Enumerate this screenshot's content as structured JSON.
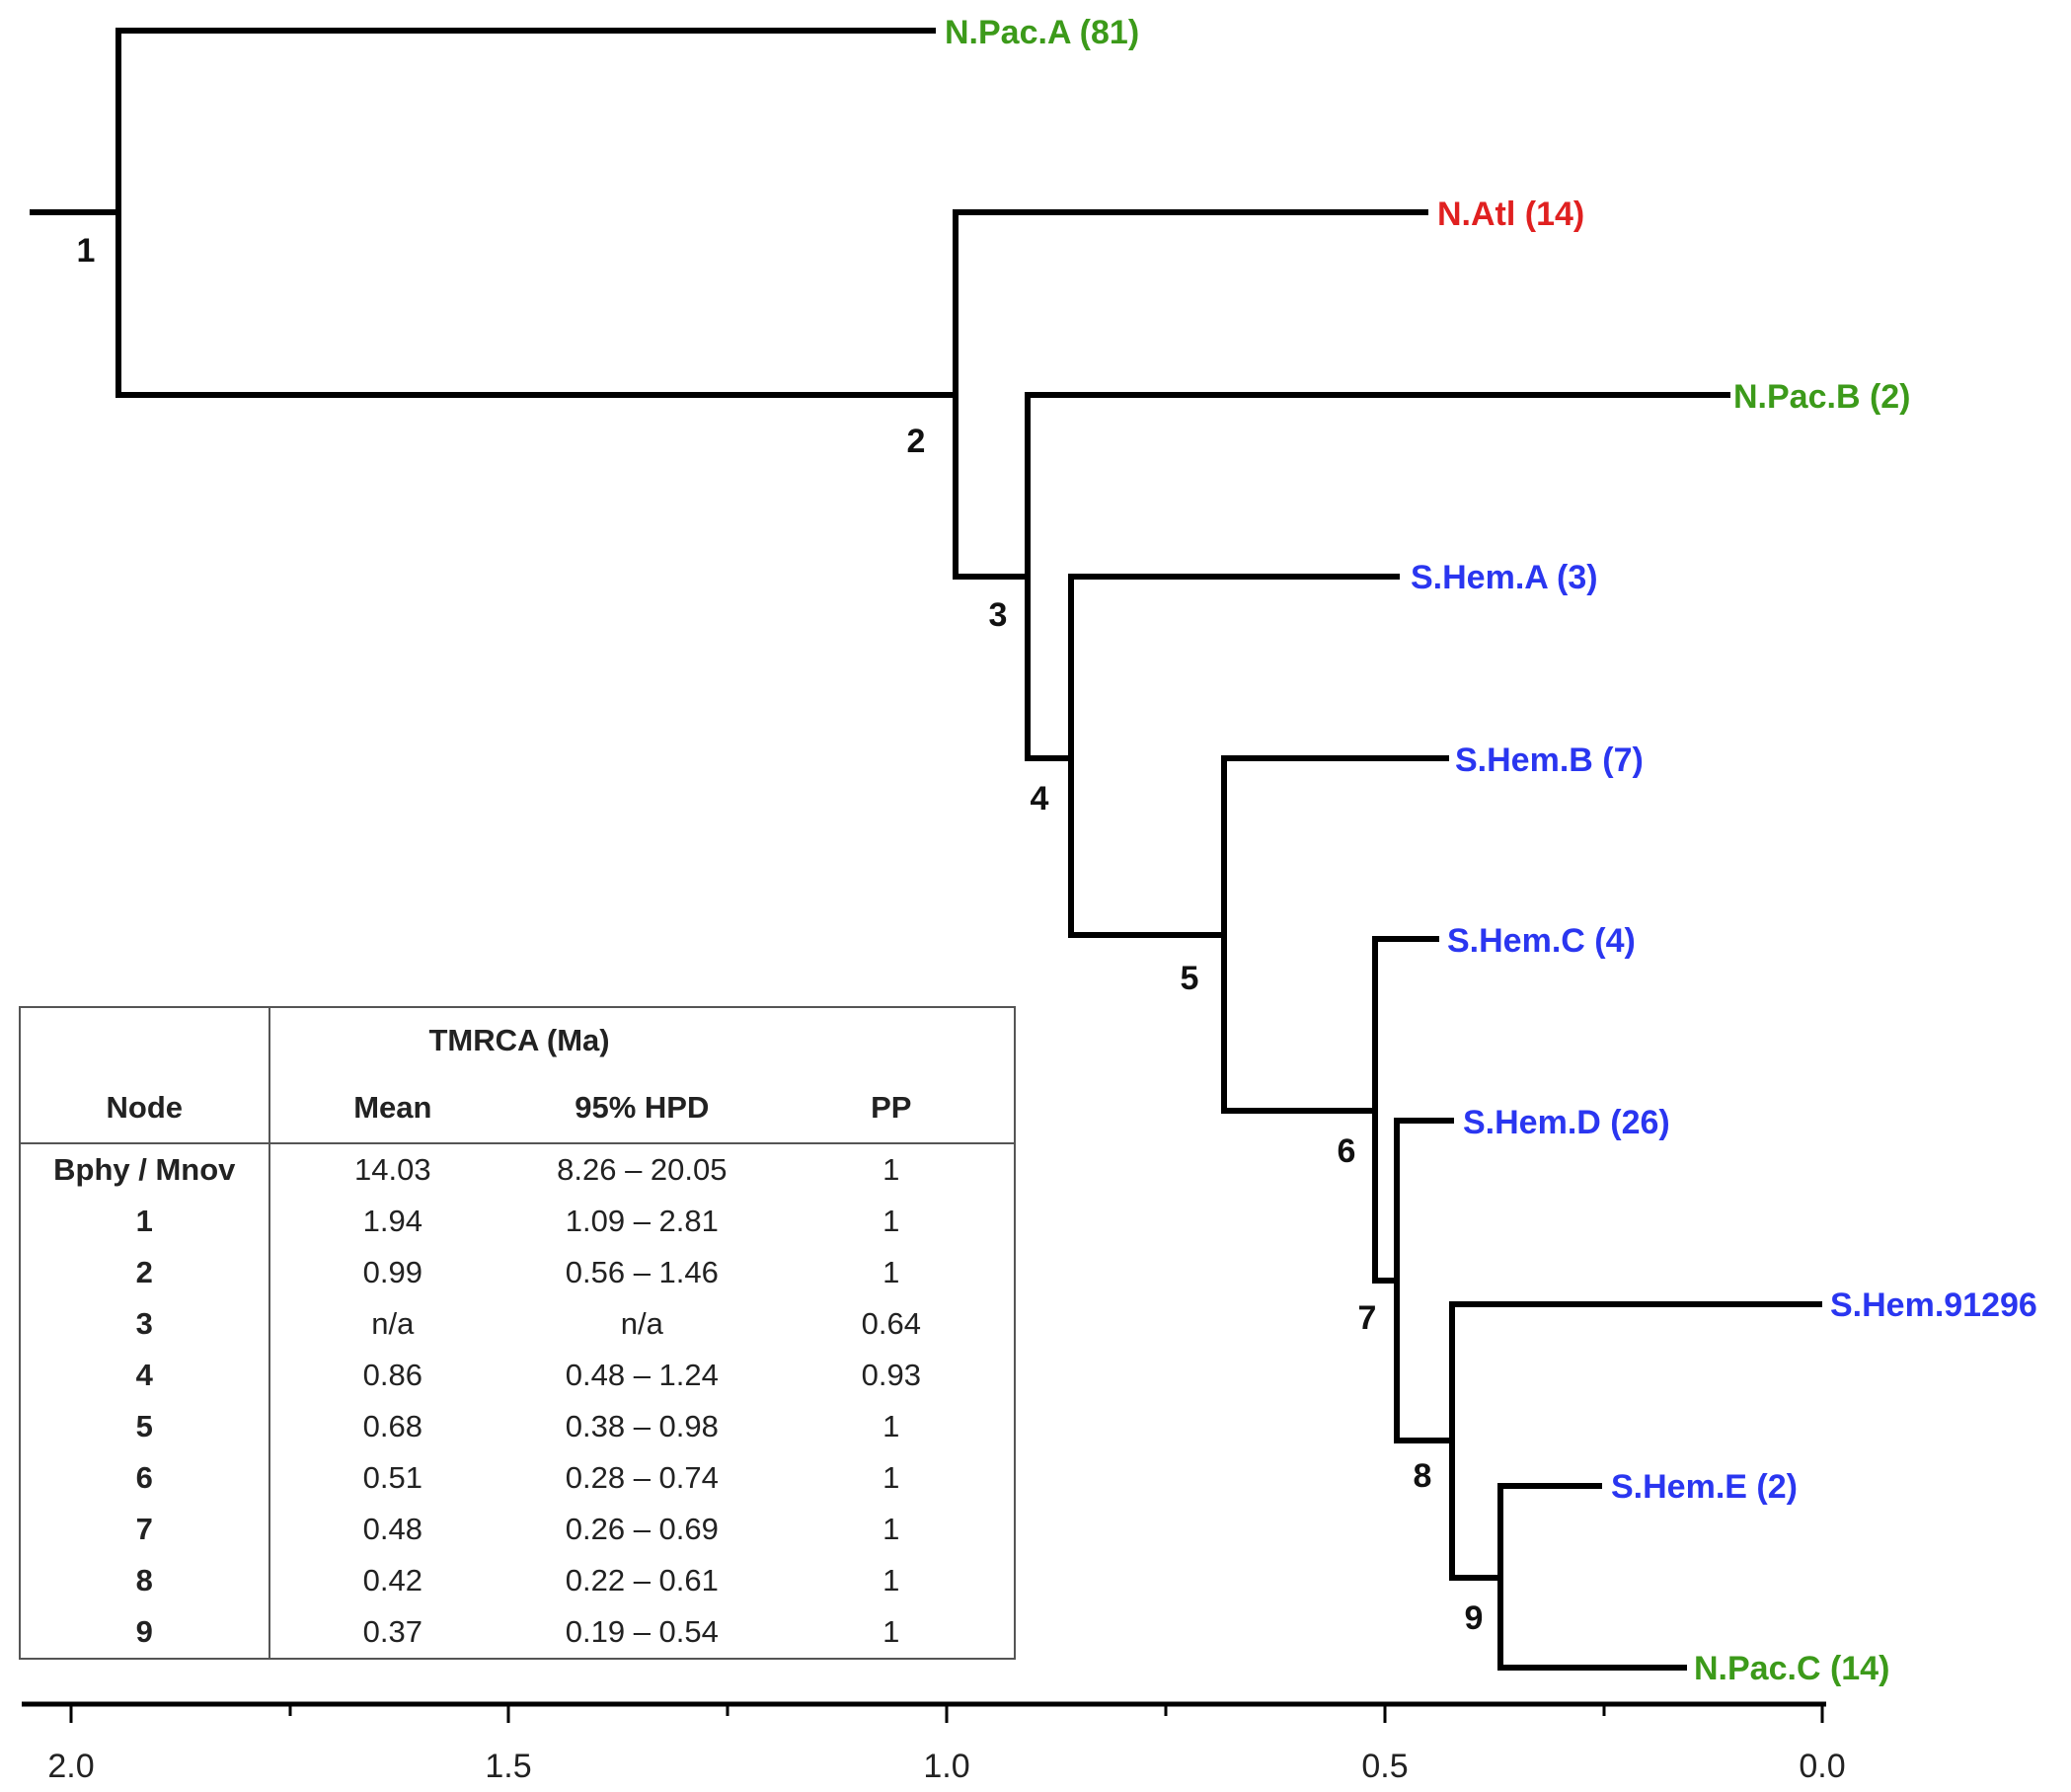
{
  "tree": {
    "tips": [
      {
        "label": "N.Pac.A (81)",
        "color": "#3c9a1a"
      },
      {
        "label": "N.Atl (14)",
        "color": "#e02020"
      },
      {
        "label": "N.Pac.B (2)",
        "color": "#3c9a1a"
      },
      {
        "label": "S.Hem.A (3)",
        "color": "#2a36f0"
      },
      {
        "label": "S.Hem.B (7)",
        "color": "#2a36f0"
      },
      {
        "label": "S.Hem.C (4)",
        "color": "#2a36f0"
      },
      {
        "label": "S.Hem.D (26)",
        "color": "#2a36f0"
      },
      {
        "label": "S.Hem.91296",
        "color": "#2a36f0"
      },
      {
        "label": "S.Hem.E (2)",
        "color": "#2a36f0"
      },
      {
        "label": "N.Pac.C (14)",
        "color": "#3c9a1a"
      }
    ],
    "node_labels": [
      "1",
      "2",
      "3",
      "4",
      "5",
      "6",
      "7",
      "8",
      "9"
    ],
    "axis_ticks": [
      "2.0",
      "1.5",
      "1.0",
      "0.5",
      "0.0"
    ]
  },
  "table": {
    "header_top": "TMRCA (Ma)",
    "columns": [
      "Node",
      "Mean",
      "95% HPD",
      "PP"
    ],
    "rows": [
      {
        "node": "Bphy / Mnov",
        "mean": "14.03",
        "hpd": "8.26 – 20.05",
        "pp": "1"
      },
      {
        "node": "1",
        "mean": "1.94",
        "hpd": "1.09 – 2.81",
        "pp": "1"
      },
      {
        "node": "2",
        "mean": "0.99",
        "hpd": "0.56 – 1.46",
        "pp": "1"
      },
      {
        "node": "3",
        "mean": "n/a",
        "hpd": "n/a",
        "pp": "0.64"
      },
      {
        "node": "4",
        "mean": "0.86",
        "hpd": "0.48 – 1.24",
        "pp": "0.93"
      },
      {
        "node": "5",
        "mean": "0.68",
        "hpd": "0.38 – 0.98",
        "pp": "1"
      },
      {
        "node": "6",
        "mean": "0.51",
        "hpd": "0.28 – 0.74",
        "pp": "1"
      },
      {
        "node": "7",
        "mean": "0.48",
        "hpd": "0.26 – 0.69",
        "pp": "1"
      },
      {
        "node": "8",
        "mean": "0.42",
        "hpd": "0.22 – 0.61",
        "pp": "1"
      },
      {
        "node": "9",
        "mean": "0.37",
        "hpd": "0.19 – 0.54",
        "pp": "1"
      }
    ]
  }
}
